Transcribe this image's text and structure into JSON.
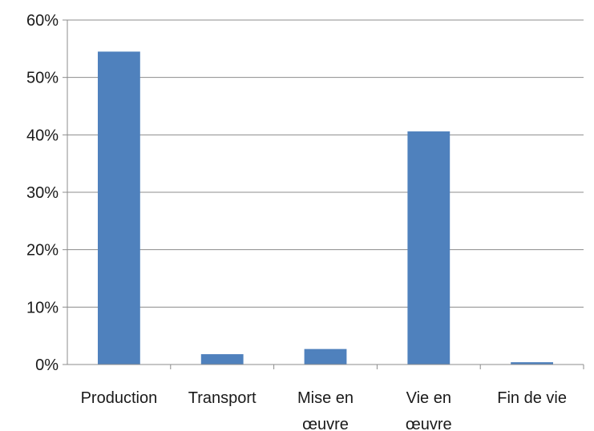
{
  "chart_data": {
    "type": "bar",
    "title": "",
    "xlabel": "",
    "ylabel": "",
    "categories": [
      [
        "Production"
      ],
      [
        "Transport"
      ],
      [
        "Mise en",
        "œuvre"
      ],
      [
        "Vie en",
        "œuvre"
      ],
      [
        "Fin de vie"
      ]
    ],
    "values": [
      54.5,
      1.8,
      2.7,
      40.6,
      0.4
    ],
    "ylim": [
      0,
      60
    ],
    "yticks": [
      0,
      10,
      20,
      30,
      40,
      50,
      60
    ],
    "ytick_labels": [
      "0%",
      "10%",
      "20%",
      "30%",
      "40%",
      "50%",
      "60%"
    ],
    "grid": true,
    "legend": "none",
    "bar_color": "#4f81bd"
  }
}
